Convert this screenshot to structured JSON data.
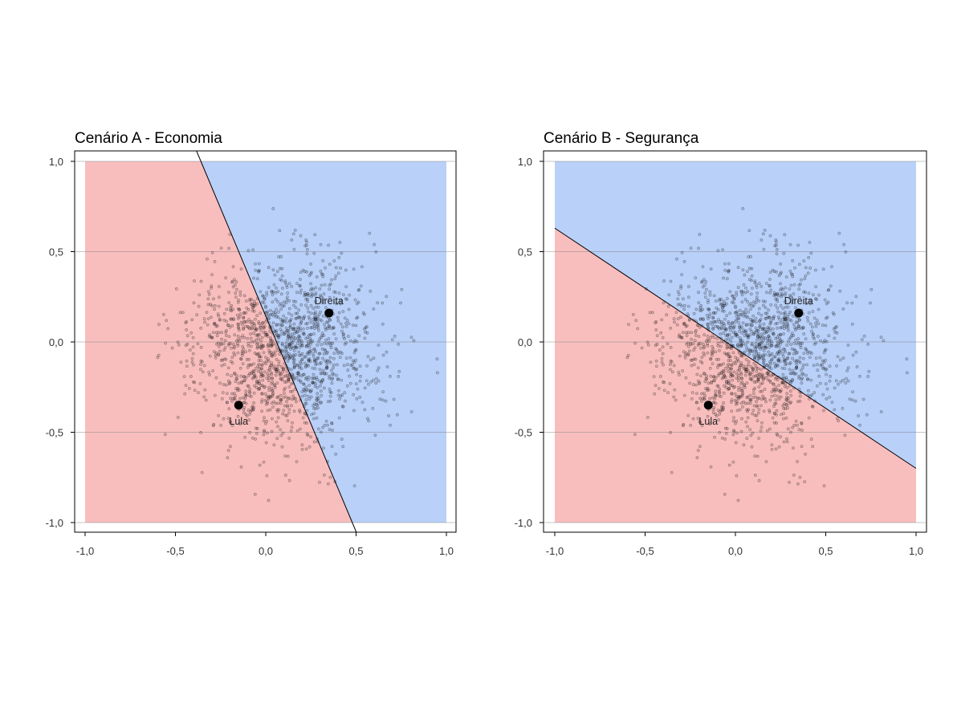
{
  "chart_data": [
    {
      "type": "scatter",
      "title": "Cenário A - Economia",
      "xlim": [
        -1.05,
        1.05
      ],
      "ylim": [
        -1.05,
        1.05
      ],
      "xticks": [
        "-1,0",
        "-0,5",
        "0,0",
        "0,5",
        "1,0"
      ],
      "xtick_values": [
        -1.0,
        -0.5,
        0.0,
        0.5,
        1.0
      ],
      "yticks": [
        "-1,0",
        "-0,5",
        "0,0",
        "0,5",
        "1,0"
      ],
      "ytick_values": [
        -1.0,
        -0.5,
        0.0,
        0.5,
        1.0
      ],
      "grid": "horizontal",
      "regions": {
        "left": {
          "color": "#f8bebe"
        },
        "right": {
          "color": "#b9d0f8"
        }
      },
      "boundary": {
        "x1": -0.38,
        "y1": 1.05,
        "x2": 0.5,
        "y2": -1.05
      },
      "candidates": [
        {
          "name": "Lula",
          "x": -0.15,
          "y": -0.35,
          "label_position": "below"
        },
        {
          "name": "Direita",
          "x": 0.35,
          "y": 0.16,
          "label_position": "above"
        }
      ],
      "voters": {
        "count": 1500,
        "center_x": 0.1,
        "center_y": -0.05,
        "sd": 0.25,
        "seed": 7
      }
    },
    {
      "type": "scatter",
      "title": "Cenário B - Segurança",
      "xlim": [
        -1.05,
        1.05
      ],
      "ylim": [
        -1.05,
        1.05
      ],
      "xticks": [
        "-1,0",
        "-0,5",
        "0,0",
        "0,5",
        "1,0"
      ],
      "xtick_values": [
        -1.0,
        -0.5,
        0.0,
        0.5,
        1.0
      ],
      "yticks": [
        "-1,0",
        "-0,5",
        "0,0",
        "0,5",
        "1,0"
      ],
      "ytick_values": [
        -1.0,
        -0.5,
        0.0,
        0.5,
        1.0
      ],
      "grid": "horizontal",
      "regions": {
        "below": {
          "color": "#f8bebe"
        },
        "above": {
          "color": "#b9d0f8"
        }
      },
      "boundary": {
        "x1": -1.0,
        "y1": 0.63,
        "x2": 1.0,
        "y2": -0.7
      },
      "candidates": [
        {
          "name": "Lula",
          "x": -0.15,
          "y": -0.35,
          "label_position": "below"
        },
        {
          "name": "Direita",
          "x": 0.35,
          "y": 0.16,
          "label_position": "above"
        }
      ],
      "voters": {
        "count": 1500,
        "center_x": 0.1,
        "center_y": -0.05,
        "sd": 0.25,
        "seed": 7
      }
    }
  ]
}
